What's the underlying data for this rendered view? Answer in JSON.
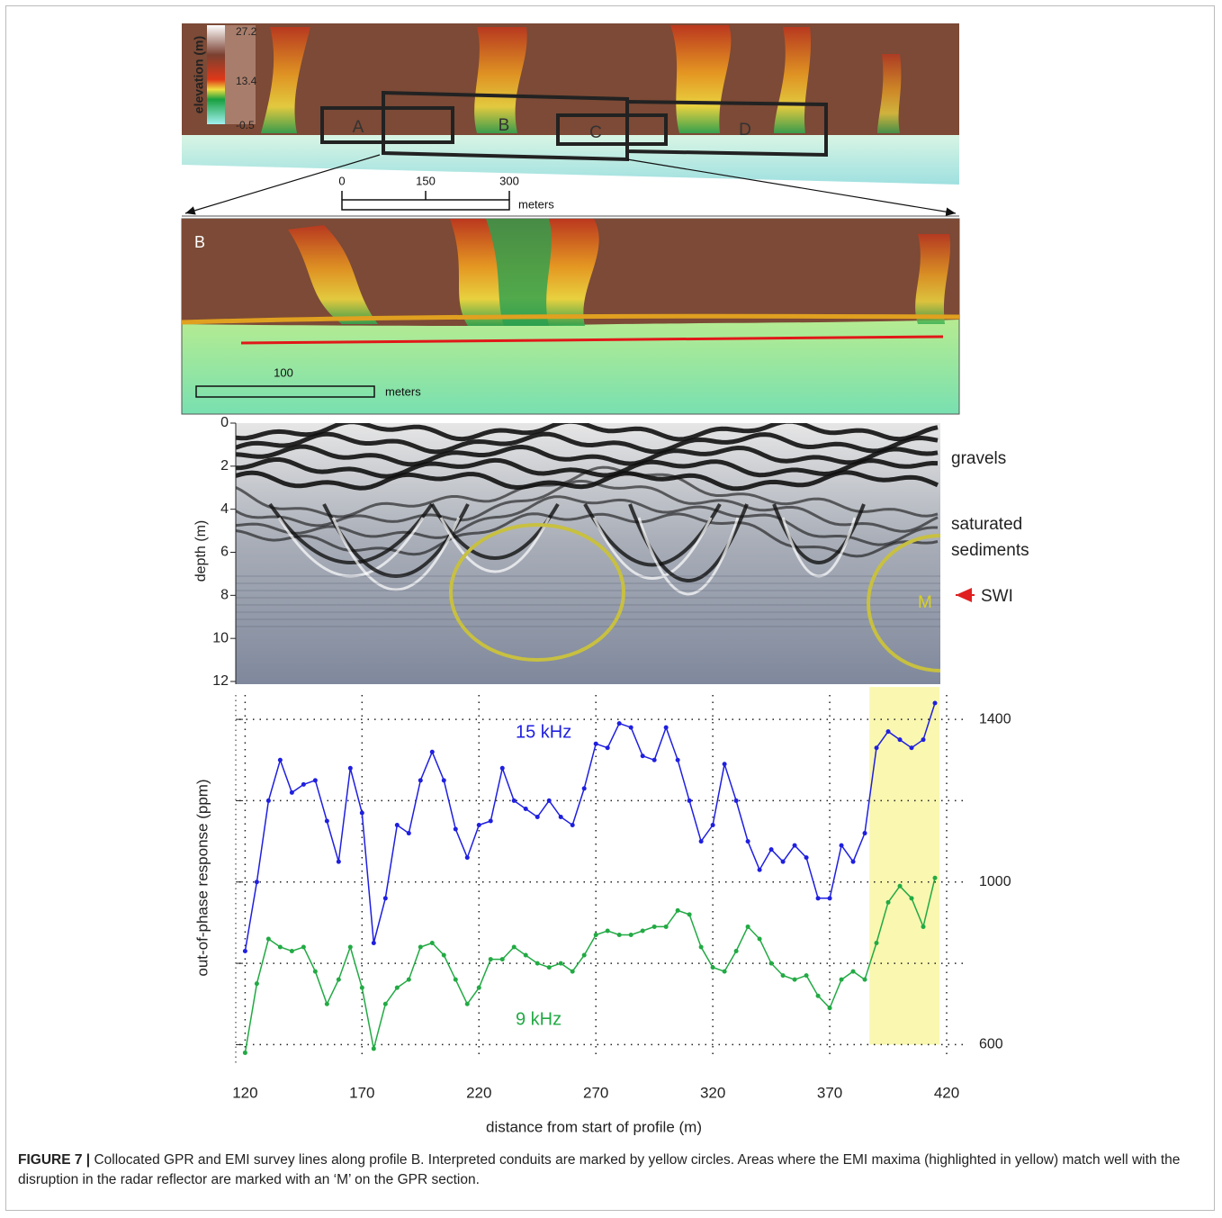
{
  "map": {
    "colorbar_label": "elevation (m)",
    "colorbar_ticks": [
      27.2,
      13.4,
      -0.5
    ],
    "boxes": [
      "A",
      "B",
      "C",
      "D"
    ],
    "scale_ticks": [
      0,
      150,
      300
    ],
    "scale_unit": "meters"
  },
  "inset": {
    "label": "B",
    "scale_value": 100,
    "scale_unit": "meters"
  },
  "chart_data": [
    {
      "type": "image",
      "ylabel": "depth (m)",
      "ylim": [
        0,
        12
      ],
      "yticks": [
        0,
        2,
        4,
        6,
        8,
        10,
        12
      ],
      "annotations": [
        "gravels",
        "saturated",
        "sediments",
        "SWI",
        "M"
      ]
    },
    {
      "type": "line",
      "xlabel": "distance from start of profile (m)",
      "ylabel": "out-of-phase response (ppm)",
      "xlim": [
        116,
        420
      ],
      "xticks": [
        120,
        170,
        220,
        270,
        320,
        370,
        420
      ],
      "ylim": [
        550,
        1460
      ],
      "yticks": [
        600,
        1000,
        1400
      ],
      "y_minor_ticks": [
        800,
        1200
      ],
      "grid": true,
      "highlight_x": [
        387,
        417
      ],
      "highlight_color": "#f9f7b0",
      "x": [
        120,
        125,
        130,
        135,
        140,
        145,
        150,
        155,
        160,
        165,
        170,
        175,
        180,
        185,
        190,
        195,
        200,
        205,
        210,
        215,
        220,
        225,
        230,
        235,
        240,
        245,
        250,
        255,
        260,
        265,
        270,
        275,
        280,
        285,
        290,
        295,
        300,
        305,
        310,
        315,
        320,
        325,
        330,
        335,
        340,
        345,
        350,
        355,
        360,
        365,
        370,
        375,
        380,
        385,
        390,
        395,
        400,
        405,
        410,
        415
      ],
      "series": [
        {
          "name": "15 kHz",
          "color": "#1f1fe0",
          "values": [
            830,
            1000,
            1200,
            1300,
            1220,
            1240,
            1250,
            1150,
            1050,
            1280,
            1170,
            850,
            960,
            1140,
            1120,
            1250,
            1320,
            1250,
            1130,
            1060,
            1140,
            1150,
            1280,
            1200,
            1180,
            1160,
            1200,
            1160,
            1140,
            1230,
            1340,
            1330,
            1390,
            1380,
            1310,
            1300,
            1380,
            1300,
            1200,
            1100,
            1140,
            1290,
            1200,
            1100,
            1030,
            1080,
            1050,
            1090,
            1060,
            960,
            960,
            1090,
            1050,
            1120,
            1330,
            1370,
            1350,
            1330,
            1350,
            1440
          ]
        },
        {
          "name": "9 kHz",
          "color": "#22aa44",
          "values": [
            580,
            750,
            860,
            840,
            830,
            840,
            780,
            700,
            760,
            840,
            740,
            590,
            700,
            740,
            760,
            840,
            850,
            820,
            760,
            700,
            740,
            810,
            810,
            840,
            820,
            800,
            790,
            800,
            780,
            820,
            870,
            880,
            870,
            870,
            880,
            890,
            890,
            930,
            920,
            840,
            790,
            780,
            830,
            890,
            860,
            800,
            770,
            760,
            770,
            720,
            690,
            760,
            780,
            760,
            850,
            950,
            990,
            960,
            890,
            1010
          ]
        }
      ]
    }
  ],
  "caption": {
    "label": "FIGURE 7 |",
    "text": "Collocated GPR and EMI survey lines along profile B. Interpreted conduits are marked by yellow circles. Areas where the EMI maxima (highlighted in yellow) match well with the disruption in the radar reflector are marked with an ‘M’ on the GPR section."
  }
}
